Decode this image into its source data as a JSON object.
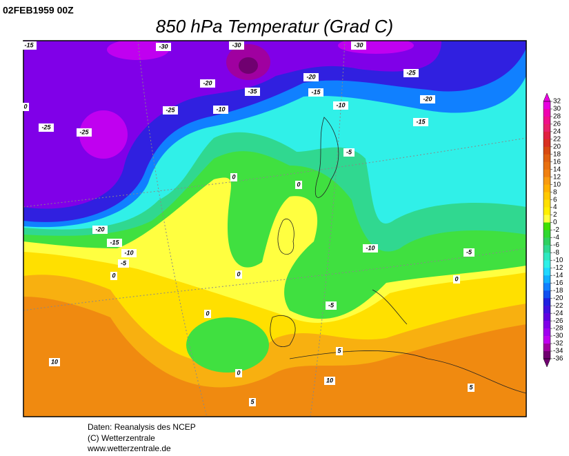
{
  "header": {
    "timestamp": "02FEB1959 00Z",
    "title": "850 hPa Temperatur (Grad C)"
  },
  "map": {
    "contour_labels": [
      "-15",
      "-30",
      "-30",
      "-30",
      "0",
      "-25",
      "-25",
      "-25",
      "-20",
      "-35",
      "-20",
      "-15",
      "-25",
      "-20",
      "-10",
      "-10",
      "-15",
      "-5",
      "0",
      "0",
      "-20",
      "-15",
      "-10",
      "-5",
      "0",
      "0",
      "-10",
      "-5",
      "0",
      "-5",
      "0",
      "0",
      "5",
      "10",
      "10",
      "5",
      "5"
    ]
  },
  "colorbar": {
    "ticks": [
      32,
      30,
      28,
      26,
      24,
      22,
      20,
      18,
      16,
      14,
      12,
      10,
      8,
      6,
      4,
      2,
      0,
      -2,
      -4,
      -6,
      -8,
      -10,
      -12,
      -14,
      -16,
      -18,
      -20,
      -22,
      -24,
      -26,
      -28,
      -30,
      -32,
      -34,
      -36
    ],
    "colors": [
      "#e800e0",
      "#f000b0",
      "#f0108a",
      "#e8206a",
      "#e02040",
      "#d83020",
      "#d84a10",
      "#e06010",
      "#e87010",
      "#f08010",
      "#f89a10",
      "#ffb000",
      "#ffc800",
      "#ffe000",
      "#fff000",
      "#ffff40",
      "#40e000",
      "#30d830",
      "#30d060",
      "#30d890",
      "#30e8c0",
      "#30f0e8",
      "#20d8ff",
      "#10b0ff",
      "#1080ff",
      "#1050f0",
      "#2020e0",
      "#4010e0",
      "#6000e0",
      "#8000e8",
      "#a000f0",
      "#c000f0",
      "#a000a0",
      "#700070"
    ]
  },
  "footer": {
    "lines": [
      "Daten: Reanalysis des NCEP",
      "(C) Wetterzentrale",
      "www.wetterzentrale.de"
    ]
  }
}
